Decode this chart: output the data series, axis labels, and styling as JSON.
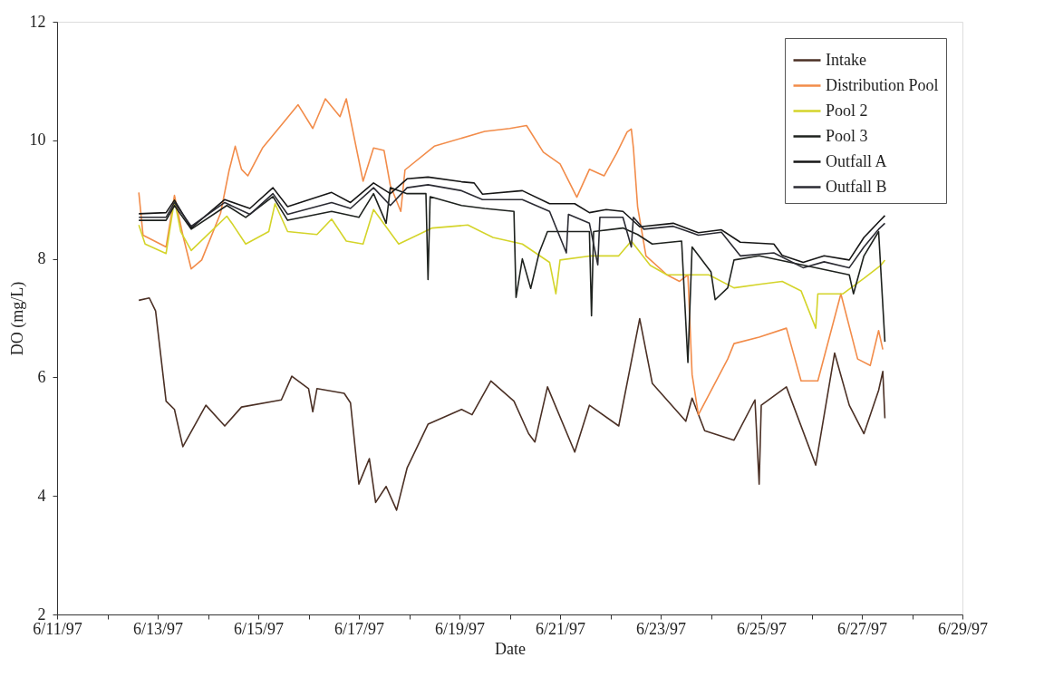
{
  "chart_data": {
    "type": "line",
    "xlabel": "Date",
    "ylabel": "DO (mg/L)",
    "xlim": [
      "1997-06-11",
      "1997-06-29"
    ],
    "xticks": [
      {
        "value": "1997-06-11",
        "label": "6/11/97"
      },
      {
        "value": "1997-06-12",
        "label": null
      },
      {
        "value": "1997-06-13",
        "label": "6/13/97"
      },
      {
        "value": "1997-06-14",
        "label": null
      },
      {
        "value": "1997-06-15",
        "label": "6/15/97"
      },
      {
        "value": "1997-06-16",
        "label": null
      },
      {
        "value": "1997-06-17",
        "label": "6/17/97"
      },
      {
        "value": "1997-06-18",
        "label": null
      },
      {
        "value": "1997-06-19",
        "label": "6/19/97"
      },
      {
        "value": "1997-06-20",
        "label": null
      },
      {
        "value": "1997-06-21",
        "label": "6/21/97"
      },
      {
        "value": "1997-06-22",
        "label": null
      },
      {
        "value": "1997-06-23",
        "label": "6/23/97"
      },
      {
        "value": "1997-06-24",
        "label": null
      },
      {
        "value": "1997-06-25",
        "label": "6/25/97"
      },
      {
        "value": "1997-06-26",
        "label": null
      },
      {
        "value": "1997-06-27",
        "label": "6/27/97"
      },
      {
        "value": "1997-06-28",
        "label": null
      },
      {
        "value": "1997-06-29",
        "label": "6/29/97"
      }
    ],
    "ylim": [
      2,
      12
    ],
    "yticks": [
      2,
      4,
      6,
      8,
      10,
      12
    ],
    "grid": false,
    "legend": "top right",
    "line_style": "solid",
    "series": [
      {
        "name": "Intake",
        "color": "#4b3025",
        "x": [
          "1997-06-12T15:00",
          "1997-06-12T20:00",
          "1997-06-12T23:00",
          "1997-06-13T04:00",
          "1997-06-13T08:00",
          "1997-06-13T12:00",
          "1997-06-13T23:00",
          "1997-06-14T08:00",
          "1997-06-14T16:00",
          "1997-06-15T11:00",
          "1997-06-15T16:00",
          "1997-06-16T00:00",
          "1997-06-16T02:00",
          "1997-06-16T04:00",
          "1997-06-16T17:00",
          "1997-06-16T20:00",
          "1997-06-17T00:00",
          "1997-06-17T05:00",
          "1997-06-17T08:00",
          "1997-06-17T13:00",
          "1997-06-17T18:00",
          "1997-06-17T23:00",
          "1997-06-18T09:00",
          "1997-06-19T01:00",
          "1997-06-19T06:00",
          "1997-06-19T15:00",
          "1997-06-20T02:00",
          "1997-06-20T09:00",
          "1997-06-20T12:00",
          "1997-06-20T18:00",
          "1997-06-21T07:00",
          "1997-06-21T14:00",
          "1997-06-22T04:00",
          "1997-06-22T14:00",
          "1997-06-22T20:00",
          "1997-06-23T12:00",
          "1997-06-23T15:00",
          "1997-06-23T21:00",
          "1997-06-24T11:00",
          "1997-06-24T21:00",
          "1997-06-24T23:00",
          "1997-06-25T00:00",
          "1997-06-25T12:00",
          "1997-06-26T02:00",
          "1997-06-26T11:00",
          "1997-06-26T18:00",
          "1997-06-27T01:00",
          "1997-06-27T08:00",
          "1997-06-27T10:00",
          "1997-06-27T11:00"
        ],
        "values": [
          7.3,
          7.34,
          7.12,
          5.6,
          5.46,
          4.83,
          5.53,
          5.18,
          5.5,
          5.62,
          6.02,
          5.81,
          5.42,
          5.81,
          5.73,
          5.57,
          4.2,
          4.63,
          3.89,
          4.16,
          3.76,
          4.47,
          5.21,
          5.46,
          5.37,
          5.94,
          5.6,
          5.05,
          4.91,
          5.84,
          4.74,
          5.53,
          5.18,
          6.99,
          5.9,
          5.26,
          5.65,
          5.1,
          4.94,
          5.62,
          4.2,
          5.53,
          5.84,
          4.52,
          6.41,
          5.53,
          5.05,
          5.78,
          6.1,
          5.31
        ]
      },
      {
        "name": "Distribution Pool",
        "color": "#f28c4a",
        "x": [
          "1997-06-12T15:00",
          "1997-06-12T17:00",
          "1997-06-13T04:00",
          "1997-06-13T08:00",
          "1997-06-13T12:00",
          "1997-06-13T16:00",
          "1997-06-13T21:00",
          "1997-06-14T06:00",
          "1997-06-14T10:00",
          "1997-06-14T13:00",
          "1997-06-14T16:00",
          "1997-06-14T19:00",
          "1997-06-15T02:00",
          "1997-06-15T12:00",
          "1997-06-15T19:00",
          "1997-06-16T02:00",
          "1997-06-16T08:00",
          "1997-06-16T15:00",
          "1997-06-16T18:00",
          "1997-06-17T02:00",
          "1997-06-17T07:00",
          "1997-06-17T12:00",
          "1997-06-17T15:00",
          "1997-06-17T20:00",
          "1997-06-17T22:00",
          "1997-06-18T12:00",
          "1997-06-19T12:00",
          "1997-06-20T00:00",
          "1997-06-20T08:00",
          "1997-06-20T16:00",
          "1997-06-21T00:00",
          "1997-06-21T08:00",
          "1997-06-21T14:00",
          "1997-06-21T21:00",
          "1997-06-22T03:00",
          "1997-06-22T08:00",
          "1997-06-22T10:00",
          "1997-06-22T11:00",
          "1997-06-22T13:00",
          "1997-06-22T17:00",
          "1997-06-23T03:00",
          "1997-06-23T09:00",
          "1997-06-23T13:00",
          "1997-06-23T15:00",
          "1997-06-23T18:00",
          "1997-06-24T08:00",
          "1997-06-24T11:00",
          "1997-06-24T23:00",
          "1997-06-25T12:00",
          "1997-06-25T19:00",
          "1997-06-26T03:00",
          "1997-06-26T14:00",
          "1997-06-26T22:00",
          "1997-06-27T04:00",
          "1997-06-27T08:00",
          "1997-06-27T10:00"
        ],
        "values": [
          9.12,
          8.4,
          8.2,
          9.07,
          8.4,
          7.83,
          7.98,
          8.77,
          9.48,
          9.9,
          9.51,
          9.4,
          9.87,
          10.3,
          10.6,
          10.2,
          10.7,
          10.4,
          10.7,
          9.31,
          9.87,
          9.83,
          9.24,
          8.8,
          9.5,
          9.9,
          10.15,
          10.2,
          10.25,
          9.8,
          9.6,
          9.04,
          9.51,
          9.4,
          9.78,
          10.14,
          10.19,
          9.87,
          8.88,
          8.05,
          7.73,
          7.62,
          7.73,
          6.05,
          5.37,
          6.31,
          6.57,
          6.68,
          6.83,
          5.94,
          5.94,
          7.41,
          6.31,
          6.2,
          6.79,
          6.47
        ]
      },
      {
        "name": "Pool 2",
        "color": "#d4d42a",
        "x": [
          "1997-06-12T15:00",
          "1997-06-12T18:00",
          "1997-06-13T04:00",
          "1997-06-13T08:00",
          "1997-06-13T11:00",
          "1997-06-13T16:00",
          "1997-06-14T09:00",
          "1997-06-14T12:00",
          "1997-06-14T18:00",
          "1997-06-15T05:00",
          "1997-06-15T08:00",
          "1997-06-15T14:00",
          "1997-06-16T04:00",
          "1997-06-16T11:00",
          "1997-06-16T18:00",
          "1997-06-17T02:00",
          "1997-06-17T07:00",
          "1997-06-17T19:00",
          "1997-06-18T11:00",
          "1997-06-19T04:00",
          "1997-06-19T16:00",
          "1997-06-20T06:00",
          "1997-06-20T19:00",
          "1997-06-20T22:00",
          "1997-06-21T00:00",
          "1997-06-21T15:00",
          "1997-06-22T04:00",
          "1997-06-22T10:00",
          "1997-06-22T19:00",
          "1997-06-23T03:00",
          "1997-06-23T12:00",
          "1997-06-23T23:00",
          "1997-06-24T11:00",
          "1997-06-24T23:00",
          "1997-06-25T10:00",
          "1997-06-25T19:00",
          "1997-06-26T02:00",
          "1997-06-26T03:00",
          "1997-06-26T15:00",
          "1997-06-27T01:00",
          "1997-06-27T09:00",
          "1997-06-27T11:00"
        ],
        "values": [
          8.57,
          8.25,
          8.09,
          8.99,
          8.46,
          8.14,
          8.72,
          8.57,
          8.25,
          8.46,
          8.93,
          8.46,
          8.41,
          8.67,
          8.3,
          8.25,
          8.83,
          8.25,
          8.52,
          8.57,
          8.36,
          8.25,
          7.94,
          7.41,
          7.98,
          8.05,
          8.05,
          8.3,
          7.89,
          7.73,
          7.73,
          7.73,
          7.51,
          7.57,
          7.62,
          7.46,
          6.83,
          7.41,
          7.41,
          7.67,
          7.89,
          7.98
        ]
      },
      {
        "name": "Pool 3",
        "color": "#1e221e",
        "x": [
          "1997-06-12T15:00",
          "1997-06-13T04:00",
          "1997-06-13T08:00",
          "1997-06-13T16:00",
          "1997-06-14T09:00",
          "1997-06-14T18:00",
          "1997-06-15T07:00",
          "1997-06-15T14:00",
          "1997-06-16T11:00",
          "1997-06-17T00:00",
          "1997-06-17T07:00",
          "1997-06-17T13:00",
          "1997-06-17T15:00",
          "1997-06-17T23:00",
          "1997-06-18T08:00",
          "1997-06-18T09:00",
          "1997-06-18T10:00",
          "1997-06-19T01:00",
          "1997-06-19T12:00",
          "1997-06-20T02:00",
          "1997-06-20T03:00",
          "1997-06-20T06:00",
          "1997-06-20T10:00",
          "1997-06-20T14:00",
          "1997-06-20T18:00",
          "1997-06-21T14:00",
          "1997-06-21T15:00",
          "1997-06-21T16:00",
          "1997-06-22T06:00",
          "1997-06-22T13:00",
          "1997-06-22T20:00",
          "1997-06-23T10:00",
          "1997-06-23T13:00",
          "1997-06-23T15:00",
          "1997-06-24T00:00",
          "1997-06-24T02:00",
          "1997-06-24T08:00",
          "1997-06-24T11:00",
          "1997-06-24T23:00",
          "1997-06-26T18:00",
          "1997-06-26T20:00",
          "1997-06-27T01:00",
          "1997-06-27T08:00",
          "1997-06-27T11:00"
        ],
        "values": [
          8.65,
          8.65,
          8.9,
          8.5,
          8.9,
          8.7,
          9.05,
          8.65,
          8.8,
          8.7,
          9.1,
          8.6,
          9.2,
          9.1,
          9.1,
          7.65,
          9.05,
          8.9,
          8.85,
          8.8,
          7.35,
          8.0,
          7.5,
          8.1,
          8.46,
          8.46,
          7.04,
          8.46,
          8.52,
          8.41,
          8.25,
          8.3,
          6.25,
          8.2,
          7.78,
          7.31,
          7.51,
          7.98,
          8.05,
          7.73,
          7.41,
          8.05,
          8.46,
          6.6
        ]
      },
      {
        "name": "Outfall A",
        "color": "#161616",
        "x": [
          "1997-06-12T15:00",
          "1997-06-13T04:00",
          "1997-06-13T08:00",
          "1997-06-13T16:00",
          "1997-06-14T08:00",
          "1997-06-14T20:00",
          "1997-06-15T07:00",
          "1997-06-15T14:00",
          "1997-06-16T11:00",
          "1997-06-16T20:00",
          "1997-06-17T07:00",
          "1997-06-17T15:00",
          "1997-06-17T23:00",
          "1997-06-18T09:00",
          "1997-06-19T01:00",
          "1997-06-19T07:00",
          "1997-06-19T11:00",
          "1997-06-20T06:00",
          "1997-06-20T19:00",
          "1997-06-21T07:00",
          "1997-06-21T14:00",
          "1997-06-21T22:00",
          "1997-06-22T06:00",
          "1997-06-22T14:00",
          "1997-06-23T06:00",
          "1997-06-23T18:00",
          "1997-06-24T05:00",
          "1997-06-24T14:00",
          "1997-06-25T06:00",
          "1997-06-25T10:00",
          "1997-06-25T20:00",
          "1997-06-26T06:00",
          "1997-06-26T18:00",
          "1997-06-27T01:00",
          "1997-06-27T08:00",
          "1997-06-27T11:00"
        ],
        "values": [
          8.76,
          8.78,
          8.99,
          8.52,
          9.0,
          8.85,
          9.2,
          8.88,
          9.12,
          8.95,
          9.28,
          9.1,
          9.35,
          9.38,
          9.3,
          9.28,
          9.09,
          9.15,
          8.93,
          8.93,
          8.78,
          8.83,
          8.8,
          8.54,
          8.6,
          8.44,
          8.49,
          8.28,
          8.25,
          8.06,
          7.94,
          8.05,
          7.98,
          8.36,
          8.62,
          8.73
        ]
      },
      {
        "name": "Outfall B",
        "color": "#2b2b33",
        "x": [
          "1997-06-12T15:00",
          "1997-06-13T04:00",
          "1997-06-13T08:00",
          "1997-06-13T16:00",
          "1997-06-14T08:00",
          "1997-06-14T20:00",
          "1997-06-15T07:00",
          "1997-06-15T14:00",
          "1997-06-16T11:00",
          "1997-06-16T20:00",
          "1997-06-17T07:00",
          "1997-06-17T15:00",
          "1997-06-17T23:00",
          "1997-06-18T09:00",
          "1997-06-19T01:00",
          "1997-06-19T11:00",
          "1997-06-20T06:00",
          "1997-06-20T19:00",
          "1997-06-21T03:00",
          "1997-06-21T04:00",
          "1997-06-21T14:00",
          "1997-06-21T18:00",
          "1997-06-21T19:00",
          "1997-06-22T06:00",
          "1997-06-22T10:00",
          "1997-06-22T11:00",
          "1997-06-22T16:00",
          "1997-06-23T06:00",
          "1997-06-23T18:00",
          "1997-06-24T05:00",
          "1997-06-24T14:00",
          "1997-06-25T06:00",
          "1997-06-25T20:00",
          "1997-06-26T06:00",
          "1997-06-26T18:00",
          "1997-06-27T01:00",
          "1997-06-27T08:00",
          "1997-06-27T11:00"
        ],
        "values": [
          8.7,
          8.7,
          8.95,
          8.55,
          8.95,
          8.75,
          9.1,
          8.75,
          8.95,
          8.85,
          9.2,
          8.9,
          9.2,
          9.25,
          9.15,
          9.0,
          9.0,
          8.8,
          8.1,
          8.75,
          8.6,
          7.9,
          8.7,
          8.7,
          8.2,
          8.7,
          8.5,
          8.55,
          8.4,
          8.45,
          8.05,
          8.1,
          7.85,
          7.95,
          7.85,
          8.2,
          8.5,
          8.6
        ]
      }
    ]
  }
}
